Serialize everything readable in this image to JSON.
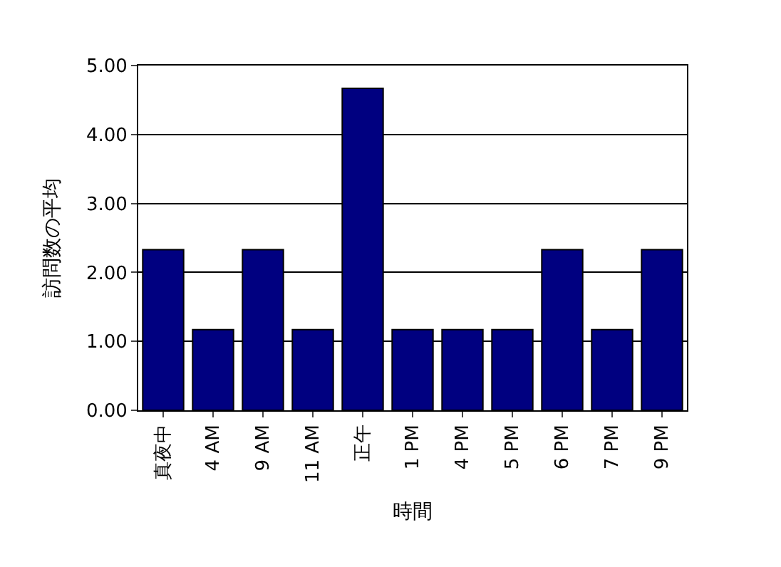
{
  "chart_data": {
    "type": "bar",
    "xlabel": "時間",
    "ylabel": "訪問数の平均",
    "categories": [
      "真夜中",
      "4 AM",
      "9 AM",
      "11 AM",
      "正午",
      "1 PM",
      "4 PM",
      "5 PM",
      "6 PM",
      "7 PM",
      "9 PM"
    ],
    "values": [
      2.33,
      1.17,
      2.33,
      1.17,
      4.67,
      1.17,
      1.17,
      1.17,
      2.33,
      1.17,
      2.33
    ],
    "color": "#000080",
    "ylim": [
      0,
      5
    ],
    "yticks": [
      {
        "value": 0,
        "label": "0.00"
      },
      {
        "value": 1,
        "label": "1.00"
      },
      {
        "value": 2,
        "label": "2.00"
      },
      {
        "value": 3,
        "label": "3.00"
      },
      {
        "value": 4,
        "label": "4.00"
      },
      {
        "value": 5,
        "label": "5.00"
      }
    ],
    "grid": "y",
    "legend": false
  }
}
